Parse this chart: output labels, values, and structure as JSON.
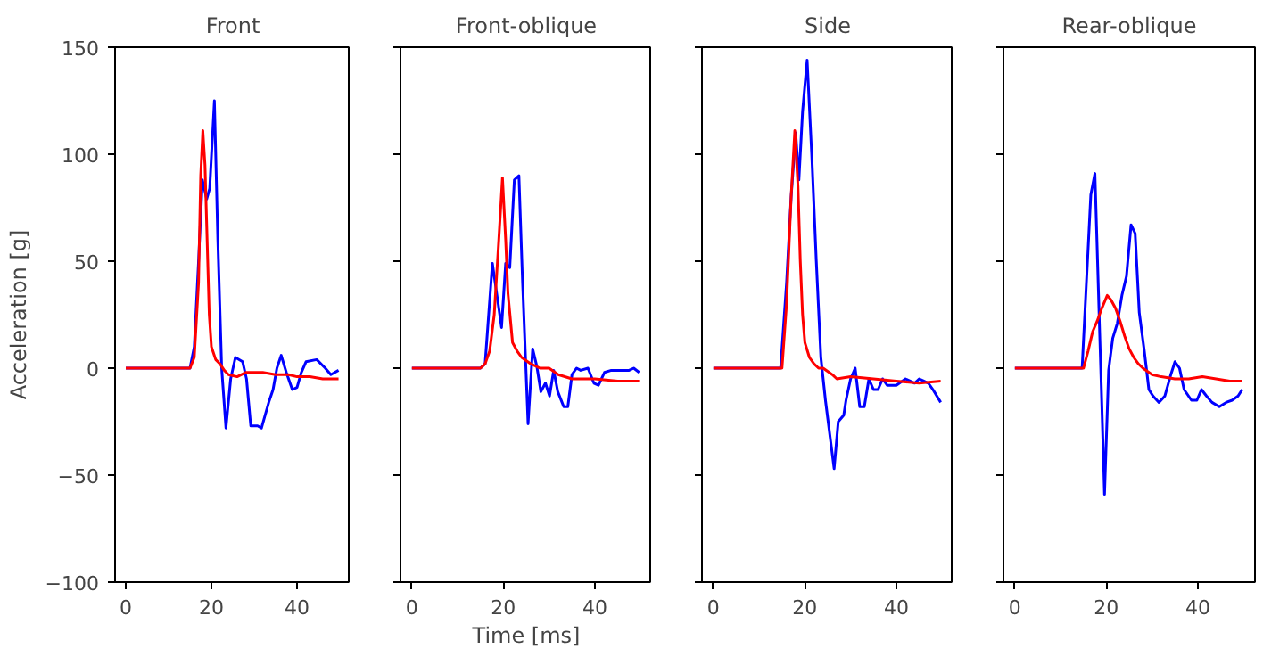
{
  "chart_data": [
    {
      "type": "line",
      "title": "Front",
      "ylabel": "Acceleration [g]",
      "xlim": [
        -2.5,
        52.5
      ],
      "xticks": [
        0,
        20,
        40
      ],
      "ylim": [
        -100,
        150
      ],
      "yticks": [
        -100,
        -50,
        0,
        50,
        100,
        150
      ],
      "grid": false,
      "series": [
        {
          "color": "#0000ff",
          "x": [
            0,
            15,
            16,
            17,
            17.9,
            18.9,
            19.6,
            20.7,
            21.5,
            22.4,
            23.4,
            24.5,
            25.6,
            27.3,
            28.2,
            29.2,
            30.8,
            31.7,
            33.4,
            34.4,
            35.3,
            36.3,
            37.5,
            38.9,
            40,
            41,
            42.1,
            44.6,
            46.6,
            47.9,
            49.7
          ],
          "values": [
            0,
            0,
            10,
            50,
            88,
            79,
            84,
            125,
            60,
            0,
            -28,
            -5,
            5,
            3,
            -5,
            -27,
            -27,
            -28,
            -16,
            -10,
            0,
            6,
            -2,
            -10,
            -9,
            -2,
            3,
            4,
            0,
            -3,
            -1
          ]
        },
        {
          "color": "#ff0000",
          "x": [
            0,
            15,
            16,
            17,
            17.5,
            18,
            18.5,
            19,
            19.5,
            20,
            21,
            22,
            23,
            24,
            26,
            28,
            30,
            32,
            35,
            38,
            40,
            43,
            46,
            49.7
          ],
          "values": [
            0,
            0,
            5,
            40,
            90,
            111,
            95,
            60,
            25,
            10,
            4,
            2,
            -1,
            -3,
            -4,
            -2,
            -2,
            -2,
            -3,
            -3,
            -4,
            -4,
            -5,
            -5
          ]
        }
      ]
    },
    {
      "type": "line",
      "title": "Front-oblique",
      "xlabel": "Time [ms]",
      "xlim": [
        -2.5,
        52.5
      ],
      "xticks": [
        0,
        20,
        40
      ],
      "ylim": [
        -100,
        150
      ],
      "yticks": [
        -100,
        -50,
        0,
        50,
        100,
        150
      ],
      "tick_labels": "x",
      "grid": false,
      "series": [
        {
          "color": "#0000ff",
          "x": [
            0,
            15,
            16,
            17.6,
            19.6,
            20.5,
            21.4,
            22.4,
            23.4,
            24.2,
            25.4,
            26.4,
            27.3,
            28.2,
            29.2,
            30.1,
            31,
            31.9,
            33.2,
            34.1,
            35,
            36,
            36.9,
            38.5,
            39.8,
            40.8,
            42.1,
            43.6,
            45.6,
            47.5,
            48.5,
            49.7
          ],
          "values": [
            0,
            0,
            2,
            49,
            19,
            49,
            47,
            88,
            90,
            40,
            -26,
            9,
            1,
            -11,
            -7,
            -13,
            -1,
            -11,
            -18,
            -18,
            -3,
            0,
            -1,
            0,
            -7,
            -8,
            -2,
            -1,
            -1,
            -1,
            0,
            -2
          ]
        },
        {
          "color": "#ff0000",
          "x": [
            0,
            15,
            16,
            17,
            18,
            19,
            19.8,
            20.5,
            21,
            22,
            23,
            24,
            26,
            28,
            30,
            32,
            35,
            40,
            45,
            49.7
          ],
          "values": [
            0,
            0,
            2,
            8,
            25,
            60,
            89,
            60,
            35,
            12,
            8,
            5,
            2,
            0,
            0,
            -3,
            -5,
            -5,
            -6,
            -6
          ]
        }
      ]
    },
    {
      "type": "line",
      "title": "Side",
      "xlim": [
        -2.5,
        52.5
      ],
      "xticks": [
        0,
        20,
        40
      ],
      "ylim": [
        -100,
        150
      ],
      "yticks": [
        -100,
        -50,
        0,
        50,
        100,
        150
      ],
      "tick_labels": "x",
      "grid": false,
      "series": [
        {
          "color": "#0000ff",
          "x": [
            0,
            14.7,
            16,
            17,
            18,
            18.7,
            19.5,
            20.5,
            21.5,
            22.5,
            23.5,
            24.5,
            26.4,
            27.3,
            28.5,
            29,
            30,
            31,
            32,
            33,
            34,
            35,
            36,
            37,
            38,
            40,
            42,
            43,
            44,
            45,
            46,
            47,
            48,
            49.7
          ],
          "values": [
            0,
            0,
            40,
            80,
            110,
            88,
            120,
            144,
            100,
            50,
            5,
            -15,
            -47,
            -25,
            -22,
            -15,
            -5,
            0,
            -18,
            -18,
            -5,
            -10,
            -10,
            -5,
            -8,
            -8,
            -5,
            -6,
            -7,
            -5,
            -6,
            -7,
            -10,
            -16
          ]
        },
        {
          "color": "#ff0000",
          "x": [
            0,
            15,
            16,
            17,
            17.8,
            18.5,
            19,
            19.5,
            20,
            21,
            22,
            23,
            24,
            26,
            27,
            30,
            35,
            40,
            45,
            49.7
          ],
          "values": [
            0,
            0,
            30,
            80,
            111,
            85,
            50,
            25,
            12,
            5,
            2,
            0,
            0,
            -3,
            -5,
            -4,
            -5,
            -6,
            -7,
            -6
          ]
        }
      ]
    },
    {
      "type": "line",
      "title": "Rear-oblique",
      "xlim": [
        -2.5,
        52.5
      ],
      "xticks": [
        0,
        20,
        40
      ],
      "ylim": [
        -100,
        150
      ],
      "yticks": [
        -100,
        -50,
        0,
        50,
        100,
        150
      ],
      "tick_labels": "x",
      "grid": false,
      "series": [
        {
          "color": "#0000ff",
          "x": [
            0,
            14.7,
            16.6,
            17.5,
            19.6,
            20.5,
            21.4,
            22.4,
            23.4,
            24.4,
            25.4,
            26.3,
            27.2,
            28.3,
            29.3,
            30.2,
            31.5,
            32.8,
            34.1,
            35,
            36,
            37,
            38.6,
            39.8,
            40.8,
            41.9,
            43.1,
            44.7,
            46.2,
            47.5,
            48.8,
            49.7
          ],
          "values": [
            0,
            0,
            81,
            91,
            -59,
            -1,
            14,
            21,
            34,
            43,
            67,
            63,
            26,
            8,
            -10,
            -13,
            -16,
            -13,
            -3,
            3,
            0,
            -10,
            -15,
            -15,
            -10,
            -13,
            -16,
            -18,
            -16,
            -15,
            -13,
            -10
          ]
        },
        {
          "color": "#ff0000",
          "x": [
            0,
            15,
            16,
            17,
            18,
            19,
            20.2,
            21,
            22,
            23,
            24,
            25,
            26,
            27,
            28,
            30,
            32,
            35,
            38,
            41,
            44,
            47,
            49.7
          ],
          "values": [
            0,
            0,
            8,
            17,
            22,
            28,
            34,
            32,
            28,
            22,
            15,
            9,
            5,
            2,
            0,
            -3,
            -4,
            -5,
            -5,
            -4,
            -5,
            -6,
            -6
          ]
        }
      ]
    }
  ]
}
